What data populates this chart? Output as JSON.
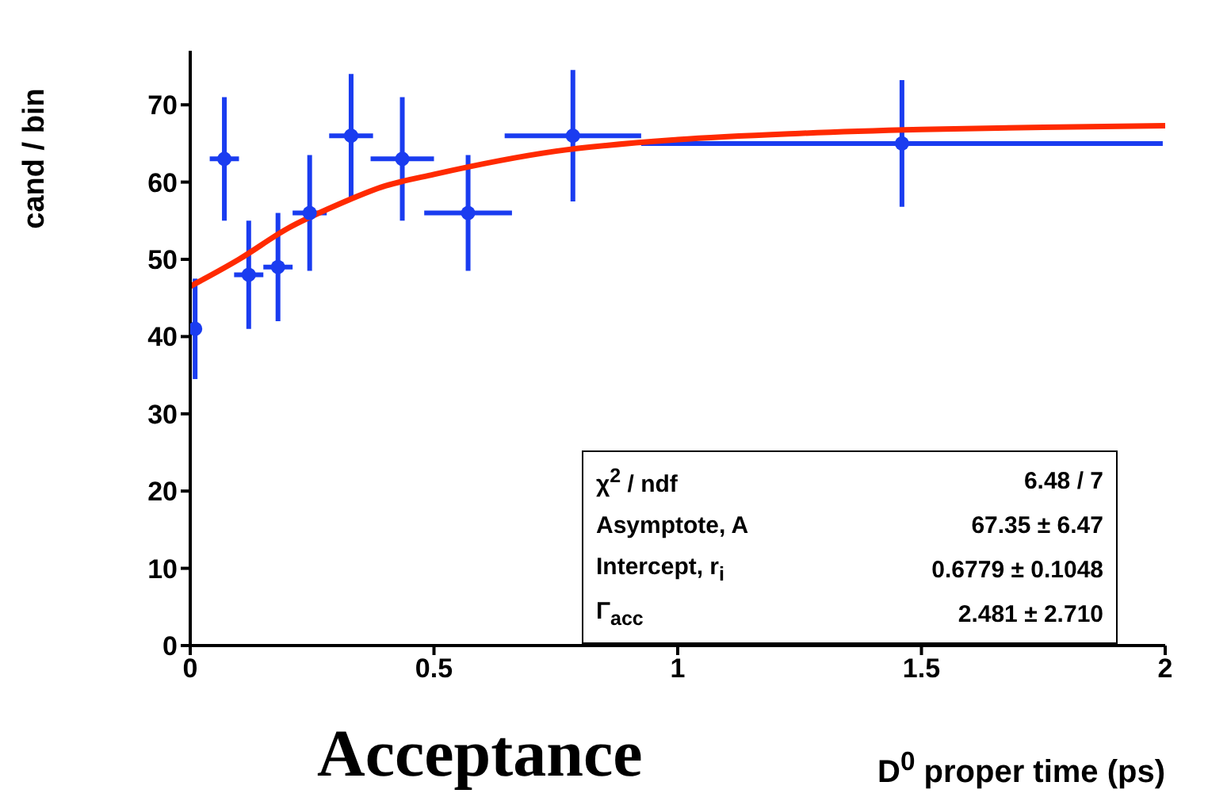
{
  "chart_data": {
    "type": "scatter",
    "title": "Acceptance",
    "xlabel": "D$^{0}$ proper time (ps)",
    "ylabel": "cand / bin",
    "xlim": [
      0,
      2
    ],
    "xticks": [
      0,
      0.5,
      1,
      1.5,
      2
    ],
    "ylim": [
      0,
      77
    ],
    "yticks": [
      0,
      10,
      20,
      30,
      40,
      50,
      60,
      70
    ],
    "grid": false,
    "legend": false,
    "series": [
      {
        "marker": "circle",
        "color": "#1a3cf0",
        "x": [
          0.01,
          0.07,
          0.12,
          0.18,
          0.245,
          0.33,
          0.435,
          0.57,
          0.785,
          1.46
        ],
        "values": [
          41,
          63,
          48,
          49,
          56,
          66,
          63,
          56,
          66,
          65
        ],
        "errors": [
          6.5,
          8,
          7,
          7,
          7.5,
          8,
          8,
          7.5,
          8.5,
          8.2
        ],
        "xerrors": [
          0.01,
          0.03,
          0.03,
          0.03,
          0.035,
          0.045,
          0.065,
          0.09,
          0.14,
          0.535
        ]
      },
      {
        "type": "line",
        "color": "#ff2a00",
        "line_style": "solid",
        "x": [
          0,
          0.1,
          0.2,
          0.3,
          0.4,
          0.5,
          0.75,
          1,
          1.25,
          1.5,
          1.75,
          2
        ],
        "values": [
          46.5,
          50,
          54,
          57,
          59.5,
          61,
          64,
          65.5,
          66.3,
          66.8,
          67.1,
          67.3
        ]
      }
    ],
    "annotations": [
      "χ$^{2}$ / ndf",
      "6.48 / 7",
      "Asymptote, A",
      "67.35 ± 6.47",
      "Intercept, r$_{i}$",
      "0.6779 ± 0.1048",
      "Γ$_{acc}$",
      "2.481 ± 2.710"
    ]
  }
}
